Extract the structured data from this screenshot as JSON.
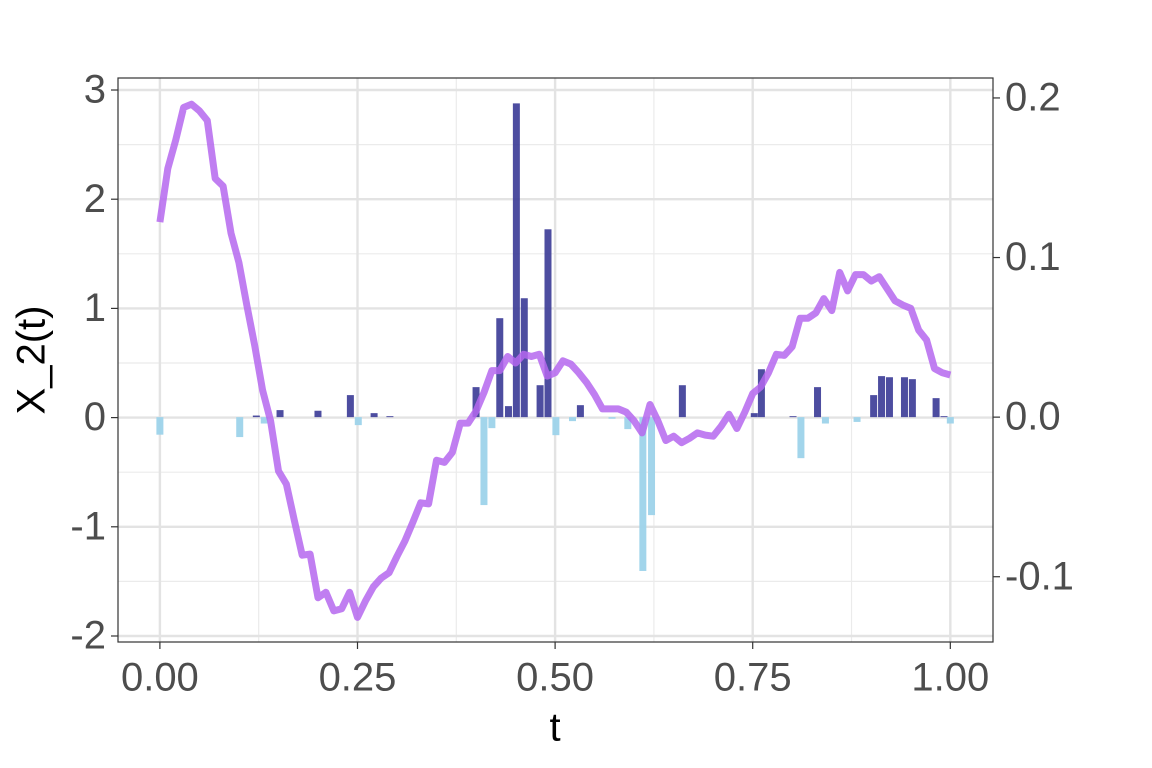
{
  "chart_data": {
    "type": "line",
    "x_label": "t",
    "y_label": "X_2(t)",
    "x": [
      0,
      0.01,
      0.02,
      0.03,
      0.04,
      0.05,
      0.06,
      0.07,
      0.08,
      0.09,
      0.1,
      0.11,
      0.12,
      0.13,
      0.14,
      0.15,
      0.16,
      0.17,
      0.18,
      0.19,
      0.2,
      0.21,
      0.22,
      0.23,
      0.24,
      0.25,
      0.26,
      0.27,
      0.28,
      0.29,
      0.3,
      0.31,
      0.32,
      0.33,
      0.34,
      0.35,
      0.36,
      0.37,
      0.38,
      0.39,
      0.4,
      0.41,
      0.42,
      0.43,
      0.44,
      0.45,
      0.46,
      0.47,
      0.48,
      0.49,
      0.5,
      0.51,
      0.52,
      0.53,
      0.54,
      0.55,
      0.56,
      0.57,
      0.58,
      0.59,
      0.6,
      0.61,
      0.62,
      0.63,
      0.64,
      0.65,
      0.66,
      0.67,
      0.68,
      0.69,
      0.7,
      0.71,
      0.72,
      0.73,
      0.74,
      0.75,
      0.76,
      0.77,
      0.78,
      0.79,
      0.8,
      0.81,
      0.82,
      0.83,
      0.84,
      0.85,
      0.86,
      0.87,
      0.88,
      0.89,
      0.9,
      0.91,
      0.92,
      0.93,
      0.94,
      0.95,
      0.96,
      0.97,
      0.98,
      0.99,
      1
    ],
    "series": [
      {
        "color": "#b567ee",
        "values": [
          1.79,
          2.28,
          2.54,
          2.84,
          2.87,
          2.81,
          2.72,
          2.19,
          2.12,
          1.69,
          1.42,
          1.03,
          0.66,
          0.25,
          -0.03,
          -0.49,
          -0.61,
          -0.94,
          -1.26,
          -1.25,
          -1.65,
          -1.6,
          -1.77,
          -1.75,
          -1.6,
          -1.83,
          -1.68,
          -1.55,
          -1.47,
          -1.42,
          -1.27,
          -1.13,
          -0.96,
          -0.78,
          -0.79,
          -0.39,
          -0.41,
          -0.32,
          -0.05,
          -0.05,
          0.06,
          0.23,
          0.43,
          0.43,
          0.56,
          0.5,
          0.58,
          0.56,
          0.58,
          0.38,
          0.41,
          0.52,
          0.49,
          0.41,
          0.32,
          0.21,
          0.08,
          0.08,
          0.08,
          0.05,
          -0.03,
          -0.14,
          0.12,
          -0.03,
          -0.21,
          -0.17,
          -0.23,
          -0.19,
          -0.14,
          -0.16,
          -0.17,
          -0.08,
          0.03,
          -0.1,
          0.05,
          0.22,
          0.28,
          0.41,
          0.58,
          0.57,
          0.65,
          0.91,
          0.91,
          0.96,
          1.09,
          0.98,
          1.33,
          1.16,
          1.31,
          1.31,
          1.25,
          1.29,
          1.18,
          1.07,
          1.03,
          1,
          0.8,
          0.71,
          0.45,
          0.41,
          0.39
        ]
      }
    ],
    "bars": {
      "axis": "y2",
      "color_positive": "#3a3a96",
      "color_negative": "#9dd3ea",
      "x": [
        0,
        0.101,
        0.122,
        0.132,
        0.152,
        0.2,
        0.241,
        0.251,
        0.271,
        0.291,
        0.4,
        0.41,
        0.42,
        0.43,
        0.441,
        0.451,
        0.461,
        0.481,
        0.491,
        0.501,
        0.522,
        0.532,
        0.572,
        0.592,
        0.611,
        0.622,
        0.661,
        0.752,
        0.761,
        0.801,
        0.811,
        0.832,
        0.842,
        0.882,
        0.903,
        0.913,
        0.923,
        0.942,
        0.952,
        0.982,
        0.992,
        1
      ],
      "values": [
        -0.011,
        -0.0125,
        0.001,
        -0.004,
        0.0044,
        0.004,
        0.0138,
        -0.005,
        0.0025,
        0.0006,
        0.0188,
        -0.0551,
        -0.0069,
        0.062,
        0.0069,
        0.1966,
        0.0745,
        0.02,
        0.1177,
        -0.0113,
        -0.0025,
        0.0075,
        -0.001,
        -0.0075,
        -0.0964,
        -0.0614,
        0.02,
        0.0025,
        0.03,
        0.0006,
        -0.0257,
        0.0188,
        -0.004,
        -0.003,
        0.0138,
        0.0257,
        0.025,
        0.025,
        0.0238,
        0.0119,
        0.0006,
        -0.004
      ]
    },
    "xlim": [
      -0.053,
      1.054
    ],
    "ylim": [
      -2.055,
      3.11
    ],
    "y2lim": [
      -0.1409,
      0.2125
    ],
    "xticks": [
      {
        "value": 0,
        "label": "0.00"
      },
      {
        "value": 0.25,
        "label": "0.25"
      },
      {
        "value": 0.5,
        "label": "0.50"
      },
      {
        "value": 0.75,
        "label": "0.75"
      },
      {
        "value": 1,
        "label": "1.00"
      }
    ],
    "yticks": [
      -2,
      -1,
      0,
      1,
      2,
      3
    ],
    "y2ticks": [
      -0.1,
      {
        "value": 0,
        "label": "0.0"
      },
      0.1,
      0.2
    ],
    "grid": true
  }
}
